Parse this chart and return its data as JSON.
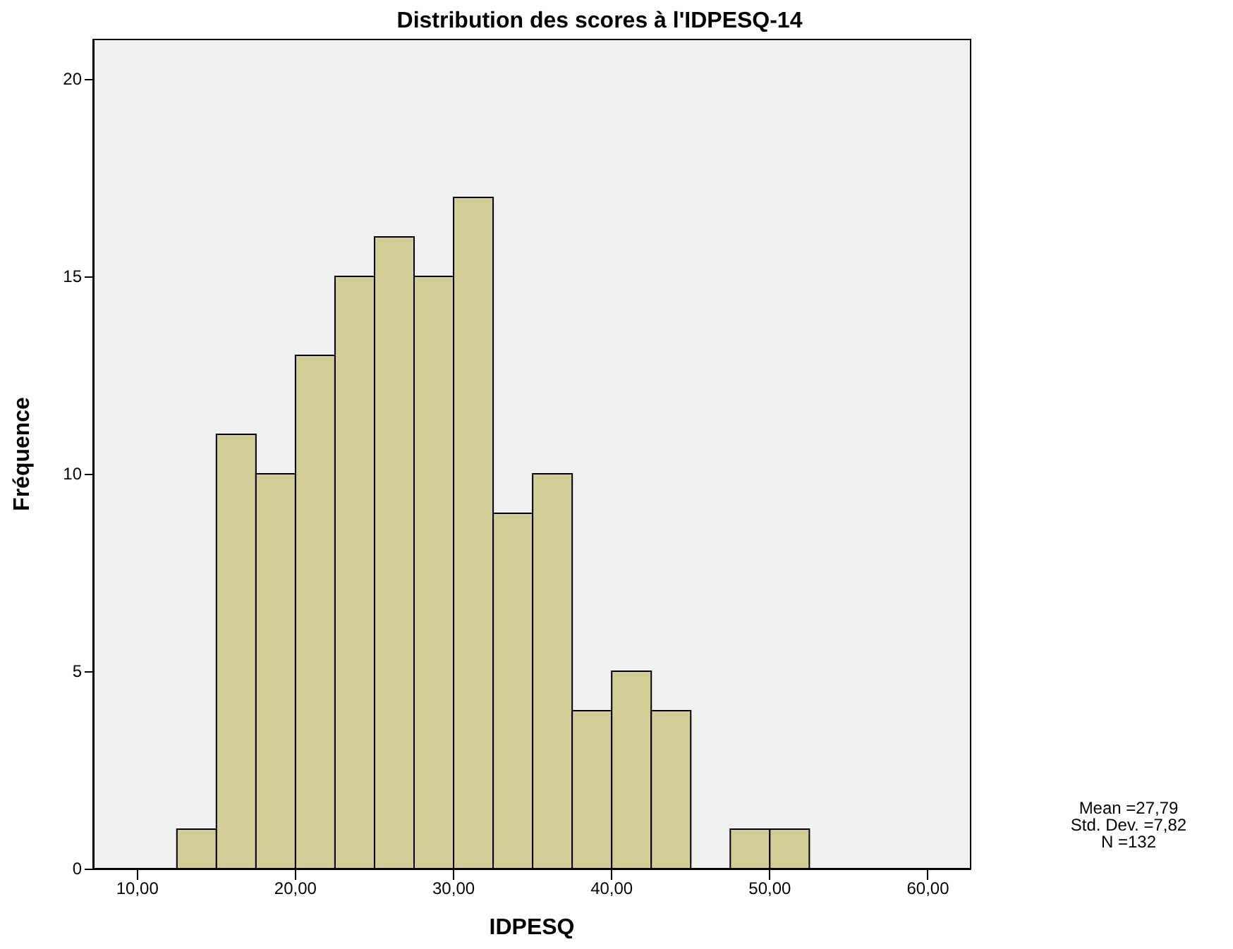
{
  "chart_data": {
    "type": "histogram",
    "title": "Distribution des scores à l'IDPESQ-14",
    "xlabel": "IDPESQ",
    "ylabel": "Fréquence",
    "bins": [
      12.5,
      15,
      17.5,
      20,
      22.5,
      25,
      27.5,
      30,
      32.5,
      35,
      37.5,
      40,
      42.5,
      45,
      47.5,
      50,
      52.5
    ],
    "values": [
      1,
      11,
      10,
      13,
      15,
      16,
      15,
      17,
      9,
      10,
      4,
      5,
      4,
      0,
      1,
      1
    ],
    "color": "#d3ce97",
    "xlim": [
      7.2,
      62.7
    ],
    "xticks": [
      {
        "value": 10,
        "label": "10,00"
      },
      {
        "value": 20,
        "label": "20,00"
      },
      {
        "value": 30,
        "label": "30,00"
      },
      {
        "value": 40,
        "label": "40,00"
      },
      {
        "value": 50,
        "label": "50,00"
      },
      {
        "value": 60,
        "label": "60,00"
      }
    ],
    "ylim": [
      0,
      21
    ],
    "yticks": [
      0,
      5,
      10,
      15,
      20
    ],
    "grid": false,
    "annotations": [
      "Mean =27,79",
      "Std. Dev. =7,82",
      "N =132"
    ]
  }
}
